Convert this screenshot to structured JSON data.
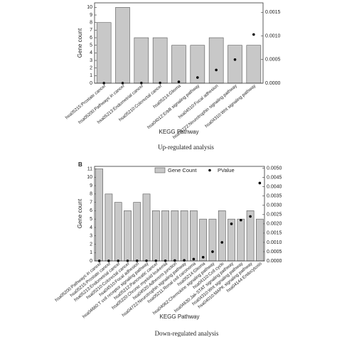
{
  "chart_data": [
    {
      "type": "bar",
      "categories": [
        "hsa05215:Prostate cancer",
        "hsa05200:Pathways in cancer",
        "hsa05213:Endometrial cancer",
        "hsa05210:Colorectal cancer",
        "hsa05214:Glioma",
        "hsa04012:ErbB signaling pathway",
        "hsa04510:Focal adhesion",
        "hsa04722:Neurotrophin signaling pathway",
        "hsa04310:Wnt signaling pathway"
      ],
      "series": [
        {
          "type": "bar",
          "color": "#c8c8c8",
          "values": [
            8,
            10,
            6,
            6,
            5,
            5,
            6,
            5,
            5
          ]
        },
        {
          "type": "scatter",
          "axis": "y2",
          "color": "#000000",
          "values": [
            1e-06,
            2e-06,
            3e-06,
            5e-06,
            3e-05,
            0.00012,
            0.00028,
            0.0005,
            0.00103
          ]
        }
      ],
      "y_label": "Gene count",
      "x_label": "KEGG Pathway",
      "caption": "Up-regulated analysis",
      "ylim": [
        0,
        10.6
      ],
      "yticks": [
        0,
        1,
        2,
        3,
        4,
        5,
        6,
        7,
        8,
        9,
        10
      ],
      "y2lim": [
        0,
        0.0017
      ],
      "y2ticks": [
        {
          "value": 0,
          "label": "0.0000"
        },
        {
          "value": 0.0005,
          "label": "0.0005"
        },
        {
          "value": 0.001,
          "label": "0.0010"
        },
        {
          "value": 0.0015,
          "label": "0.0015"
        }
      ]
    },
    {
      "type": "bar",
      "panel_label": "B",
      "categories": [
        "hsa05200:Pathways in cancer",
        "hsa05215:Prostate cancer",
        "hsa05213:Endometrial cancer",
        "hsa05210:Colorectal cancer",
        "hsa04510:Focal adhesion",
        "hsa04660:T cell receptor signaling pathway",
        "hsa05212:Pancreatic cancer",
        "hsa05220:Chronic myeloid leukemia",
        "hsa04520:Adherens junction",
        "hsa04722:Neurotrophin signaling pathway",
        "hsa05211:Renal cell carcinoma",
        "hsa05214:Glioma",
        "hsa04062:Chemokine signaling pathway",
        "hsa04110:Cell cycle",
        "hsa04630:Jak-STAT signaling pathway",
        "hsa04310:Wnt signaling pathway",
        "hsa04010:MAPK signaling pathway",
        "hsa04144:Endocytosis"
      ],
      "series": [
        {
          "type": "bar",
          "name": "Gene Count",
          "color": "#c8c8c8",
          "values": [
            11,
            8,
            7,
            6,
            7,
            8,
            6,
            6,
            6,
            6,
            6,
            5,
            5,
            6,
            5,
            5,
            6,
            5
          ]
        },
        {
          "type": "scatter",
          "name": "PValue",
          "axis": "y2",
          "color": "#000000",
          "values": [
            1e-06,
            2e-06,
            3e-06,
            5e-06,
            6e-06,
            8e-06,
            1e-05,
            1e-05,
            2e-05,
            3e-05,
            0.0001,
            0.0002,
            0.0005,
            0.001,
            0.002,
            0.0022,
            0.0024,
            0.0042
          ]
        }
      ],
      "y_label": "Gene count",
      "x_label": "KEGG Pathway",
      "caption": "Down-regulated analysis",
      "ylim": [
        0,
        11.3
      ],
      "yticks": [
        0,
        1,
        2,
        3,
        4,
        5,
        6,
        7,
        8,
        9,
        10,
        11
      ],
      "y2lim": [
        0,
        0.0051
      ],
      "y2ticks": [
        {
          "value": 0,
          "label": "0.0000"
        },
        {
          "value": 0.0005,
          "label": "0.0005"
        },
        {
          "value": 0.001,
          "label": "0.0010"
        },
        {
          "value": 0.0015,
          "label": "0.0015"
        },
        {
          "value": 0.002,
          "label": "0.0020"
        },
        {
          "value": 0.0025,
          "label": "0.0025"
        },
        {
          "value": 0.003,
          "label": "0.0030"
        },
        {
          "value": 0.0035,
          "label": "0.0035"
        },
        {
          "value": 0.004,
          "label": "0.0040"
        },
        {
          "value": 0.0045,
          "label": "0.0045"
        },
        {
          "value": 0.005,
          "label": "0.0050"
        }
      ]
    }
  ]
}
